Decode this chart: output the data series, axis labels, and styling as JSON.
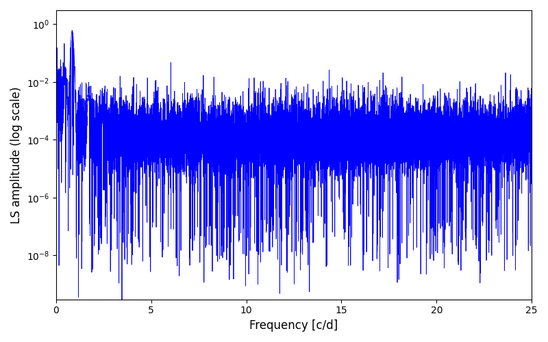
{
  "xlabel": "Frequency [c/d]",
  "ylabel": "LS amplitude (log scale)",
  "xlim": [
    0,
    25
  ],
  "ylim_log": [
    3e-10,
    3.0
  ],
  "line_color": "#0000ff",
  "line_width": 0.6,
  "background_color": "#ffffff",
  "peak_freq": 0.85,
  "peak_amplitude": 0.6,
  "num_points": 12000,
  "freq_max": 25.0,
  "seed": 42
}
